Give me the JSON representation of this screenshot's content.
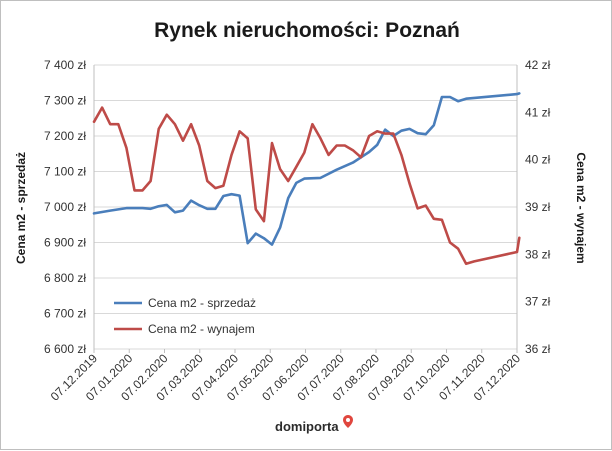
{
  "chart_data": {
    "type": "line",
    "title": "Rynek nieruchomości: Poznań",
    "ylabel": "Cena m2 - sprzedaż",
    "y2label": "Cena m2 - wynajem",
    "ylim": [
      6600,
      7400
    ],
    "y_ticks": [
      "6 600 zł",
      "6 700 zł",
      "6 800 zł",
      "6 900 zł",
      "7 000 zł",
      "7 100 zł",
      "7 200 zł",
      "7 300 zł",
      "7 400 zł"
    ],
    "y2lim": [
      36,
      42
    ],
    "y2_ticks": [
      "36 zł",
      "37 zł",
      "38 zł",
      "39 zł",
      "40 zł",
      "41 zł",
      "42 zł"
    ],
    "x_ticks": [
      "07.12.2019",
      "07.01.2020",
      "07.02.2020",
      "07.03.2020",
      "07.04.2020",
      "07.05.2020",
      "07.06.2020",
      "07.07.2020",
      "07.08.2020",
      "07.09.2020",
      "07.10.2020",
      "07.11.2020",
      "07.12.2020"
    ],
    "grid": true,
    "legend": "bottom-left",
    "series": [
      {
        "name": "Cena m2 - sprzedaż",
        "axis": "left",
        "color": "#4a7ebb",
        "x": [
          "2019-12-07",
          "2019-12-21",
          "2020-01-04",
          "2020-01-18",
          "2020-01-25",
          "2020-02-01",
          "2020-02-08",
          "2020-02-15",
          "2020-02-22",
          "2020-02-29",
          "2020-03-07",
          "2020-03-14",
          "2020-03-21",
          "2020-03-28",
          "2020-04-04",
          "2020-04-11",
          "2020-04-18",
          "2020-04-25",
          "2020-05-02",
          "2020-05-09",
          "2020-05-16",
          "2020-05-23",
          "2020-05-30",
          "2020-06-06",
          "2020-06-20",
          "2020-07-04",
          "2020-07-18",
          "2020-07-25",
          "2020-08-01",
          "2020-08-08",
          "2020-08-15",
          "2020-08-22",
          "2020-08-29",
          "2020-09-05",
          "2020-09-12",
          "2020-09-19",
          "2020-09-26",
          "2020-10-03",
          "2020-10-10",
          "2020-10-17",
          "2020-10-24",
          "2020-12-07",
          "2020-12-09"
        ],
        "values": [
          6982,
          6990,
          6997,
          6997,
          6995,
          7002,
          7006,
          6985,
          6990,
          7018,
          7005,
          6995,
          6995,
          7031,
          7036,
          7032,
          6898,
          6925,
          6912,
          6894,
          6942,
          7025,
          7068,
          7080,
          7082,
          7105,
          7125,
          7140,
          7155,
          7175,
          7218,
          7200,
          7215,
          7220,
          7208,
          7205,
          7230,
          7310,
          7310,
          7298,
          7305,
          7318,
          7320
        ]
      },
      {
        "name": "Cena m2 - wynajem",
        "axis": "right",
        "color": "#be4b48",
        "x": [
          "2019-12-07",
          "2019-12-14",
          "2019-12-21",
          "2019-12-28",
          "2020-01-04",
          "2020-01-11",
          "2020-01-18",
          "2020-01-25",
          "2020-02-01",
          "2020-02-08",
          "2020-02-15",
          "2020-02-22",
          "2020-02-29",
          "2020-03-07",
          "2020-03-14",
          "2020-03-21",
          "2020-03-28",
          "2020-04-04",
          "2020-04-11",
          "2020-04-18",
          "2020-04-25",
          "2020-05-02",
          "2020-05-09",
          "2020-05-16",
          "2020-05-23",
          "2020-05-30",
          "2020-06-06",
          "2020-06-13",
          "2020-06-20",
          "2020-06-27",
          "2020-07-04",
          "2020-07-11",
          "2020-07-18",
          "2020-07-25",
          "2020-08-01",
          "2020-08-08",
          "2020-08-15",
          "2020-08-22",
          "2020-08-29",
          "2020-09-05",
          "2020-09-12",
          "2020-09-19",
          "2020-09-26",
          "2020-10-03",
          "2020-10-10",
          "2020-10-17",
          "2020-10-24",
          "2020-10-31",
          "2020-12-07",
          "2020-12-09"
        ],
        "values": [
          40.8,
          41.1,
          40.75,
          40.75,
          40.25,
          39.35,
          39.35,
          39.55,
          40.65,
          40.95,
          40.75,
          40.4,
          40.75,
          40.3,
          39.55,
          39.4,
          39.45,
          40.1,
          40.6,
          40.45,
          38.95,
          38.7,
          40.35,
          39.8,
          39.55,
          39.85,
          40.15,
          40.75,
          40.45,
          40.1,
          40.3,
          40.3,
          40.2,
          40.05,
          40.5,
          40.6,
          40.55,
          40.55,
          40.1,
          39.5,
          38.97,
          39.03,
          38.75,
          38.73,
          38.25,
          38.12,
          37.8,
          37.85,
          38.05,
          38.35
        ]
      }
    ]
  },
  "branding": {
    "logo_text": "domiporta"
  }
}
